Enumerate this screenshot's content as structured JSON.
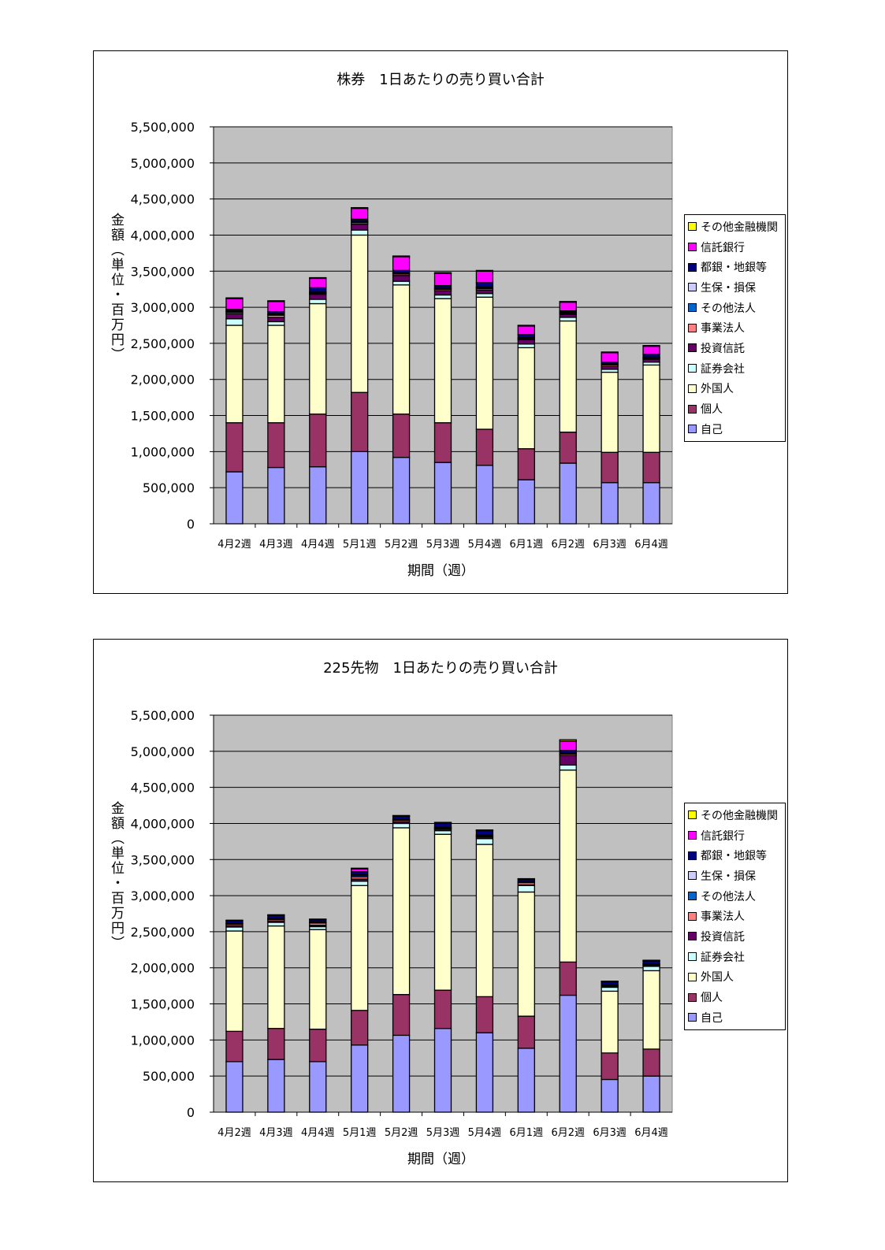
{
  "chart_data": [
    {
      "type": "bar",
      "stacked": true,
      "title": "株券　1日あたりの売り買い合計",
      "xlabel": "期間（週）",
      "ylabel": "金額（単位・百万円）",
      "ylim": [
        0,
        5500000
      ],
      "yticks": [
        0,
        500000,
        1000000,
        1500000,
        2000000,
        2500000,
        3000000,
        3500000,
        4000000,
        4500000,
        5000000,
        5500000
      ],
      "grid": true,
      "legend_position": "right",
      "plot_background": "#C0C0C0",
      "categories": [
        "4月2週",
        "4月3週",
        "4月4週",
        "5月1週",
        "5月2週",
        "5月3週",
        "5月4週",
        "6月1週",
        "6月2週",
        "6月3週",
        "6月4週"
      ],
      "series": [
        {
          "name": "自己",
          "color": "#9999FF",
          "values": [
            720000,
            780000,
            790000,
            1000000,
            920000,
            850000,
            810000,
            610000,
            840000,
            570000,
            570000
          ]
        },
        {
          "name": "個人",
          "color": "#993366",
          "values": [
            680000,
            620000,
            730000,
            820000,
            600000,
            550000,
            500000,
            430000,
            430000,
            420000,
            420000
          ]
        },
        {
          "name": "外国人",
          "color": "#FFFFCC",
          "values": [
            1350000,
            1350000,
            1530000,
            2180000,
            1790000,
            1720000,
            1830000,
            1400000,
            1540000,
            1110000,
            1210000
          ]
        },
        {
          "name": "証券会社",
          "color": "#CCFFFF",
          "values": [
            90000,
            50000,
            60000,
            70000,
            50000,
            50000,
            50000,
            50000,
            50000,
            40000,
            40000
          ]
        },
        {
          "name": "投資信託",
          "color": "#660066",
          "values": [
            70000,
            60000,
            70000,
            80000,
            80000,
            60000,
            50000,
            60000,
            40000,
            40000,
            40000
          ]
        },
        {
          "name": "事業法人",
          "color": "#FF8080",
          "values": [
            20000,
            30000,
            10000,
            20000,
            20000,
            20000,
            20000,
            10000,
            10000,
            20000,
            10000
          ]
        },
        {
          "name": "その他法人",
          "color": "#0066CC",
          "values": [
            10000,
            10000,
            10000,
            10000,
            10000,
            10000,
            10000,
            10000,
            10000,
            10000,
            10000
          ]
        },
        {
          "name": "生保・損保",
          "color": "#CCCCFF",
          "values": [
            10000,
            10000,
            10000,
            10000,
            10000,
            10000,
            10000,
            10000,
            10000,
            10000,
            10000
          ]
        },
        {
          "name": "都銀・地銀等",
          "color": "#000080",
          "values": [
            20000,
            30000,
            60000,
            30000,
            30000,
            30000,
            60000,
            40000,
            20000,
            20000,
            40000
          ]
        },
        {
          "name": "信託銀行",
          "color": "#FF00FF",
          "values": [
            150000,
            140000,
            130000,
            150000,
            190000,
            170000,
            160000,
            120000,
            120000,
            130000,
            110000
          ]
        },
        {
          "name": "その他金融機関",
          "color": "#FFFF00",
          "values": [
            10000,
            10000,
            10000,
            10000,
            10000,
            10000,
            10000,
            10000,
            10000,
            10000,
            10000
          ]
        }
      ]
    },
    {
      "type": "bar",
      "stacked": true,
      "title": "225先物　1日あたりの売り買い合計",
      "xlabel": "期間（週）",
      "ylabel": "金額（単位・百万円）",
      "ylim": [
        0,
        5500000
      ],
      "yticks": [
        0,
        500000,
        1000000,
        1500000,
        2000000,
        2500000,
        3000000,
        3500000,
        4000000,
        4500000,
        5000000,
        5500000
      ],
      "grid": true,
      "legend_position": "right",
      "plot_background": "#C0C0C0",
      "categories": [
        "4月2週",
        "4月3週",
        "4月4週",
        "5月1週",
        "5月2週",
        "5月3週",
        "5月4週",
        "6月1週",
        "6月2週",
        "6月3週",
        "6月4週"
      ],
      "series": [
        {
          "name": "自己",
          "color": "#9999FF",
          "values": [
            700000,
            730000,
            700000,
            930000,
            1065000,
            1160000,
            1100000,
            885000,
            1620000,
            453000,
            500000
          ]
        },
        {
          "name": "個人",
          "color": "#993366",
          "values": [
            420000,
            430000,
            450000,
            480000,
            565000,
            530000,
            500000,
            445000,
            460000,
            367000,
            374000
          ]
        },
        {
          "name": "外国人",
          "color": "#FFFFCC",
          "values": [
            1390000,
            1420000,
            1380000,
            1730000,
            2310000,
            2160000,
            2110000,
            1720000,
            2660000,
            856000,
            1086000
          ]
        },
        {
          "name": "証券会社",
          "color": "#CCFFFF",
          "values": [
            55000,
            50000,
            40000,
            60000,
            60000,
            50000,
            80000,
            90000,
            70000,
            54000,
            60000
          ]
        },
        {
          "name": "投資信託",
          "color": "#660066",
          "values": [
            20000,
            20000,
            20000,
            30000,
            20000,
            20000,
            20000,
            10000,
            130000,
            10000,
            10000
          ]
        },
        {
          "name": "事業法人",
          "color": "#FF8080",
          "values": [
            20000,
            20000,
            30000,
            30000,
            20000,
            10000,
            10000,
            30000,
            20000,
            10000,
            10000
          ]
        },
        {
          "name": "その他法人",
          "color": "#0066CC",
          "values": [
            10000,
            10000,
            10000,
            20000,
            10000,
            10000,
            10000,
            10000,
            10000,
            10000,
            10000
          ]
        },
        {
          "name": "生保・損保",
          "color": "#CCCCFF",
          "values": [
            5000,
            5000,
            5000,
            10000,
            10000,
            10000,
            10000,
            5000,
            10000,
            5000,
            5000
          ]
        },
        {
          "name": "都銀・地銀等",
          "color": "#000080",
          "values": [
            30000,
            40000,
            30000,
            40000,
            40000,
            50000,
            60000,
            30000,
            30000,
            40000,
            40000
          ]
        },
        {
          "name": "信託銀行",
          "color": "#FF00FF",
          "values": [
            5000,
            5000,
            5000,
            40000,
            5000,
            10000,
            5000,
            5000,
            130000,
            5000,
            5000
          ]
        },
        {
          "name": "その他金融機関",
          "color": "#FFFF00",
          "values": [
            5000,
            5000,
            5000,
            10000,
            5000,
            5000,
            5000,
            5000,
            20000,
            5000,
            5000
          ]
        }
      ]
    }
  ]
}
